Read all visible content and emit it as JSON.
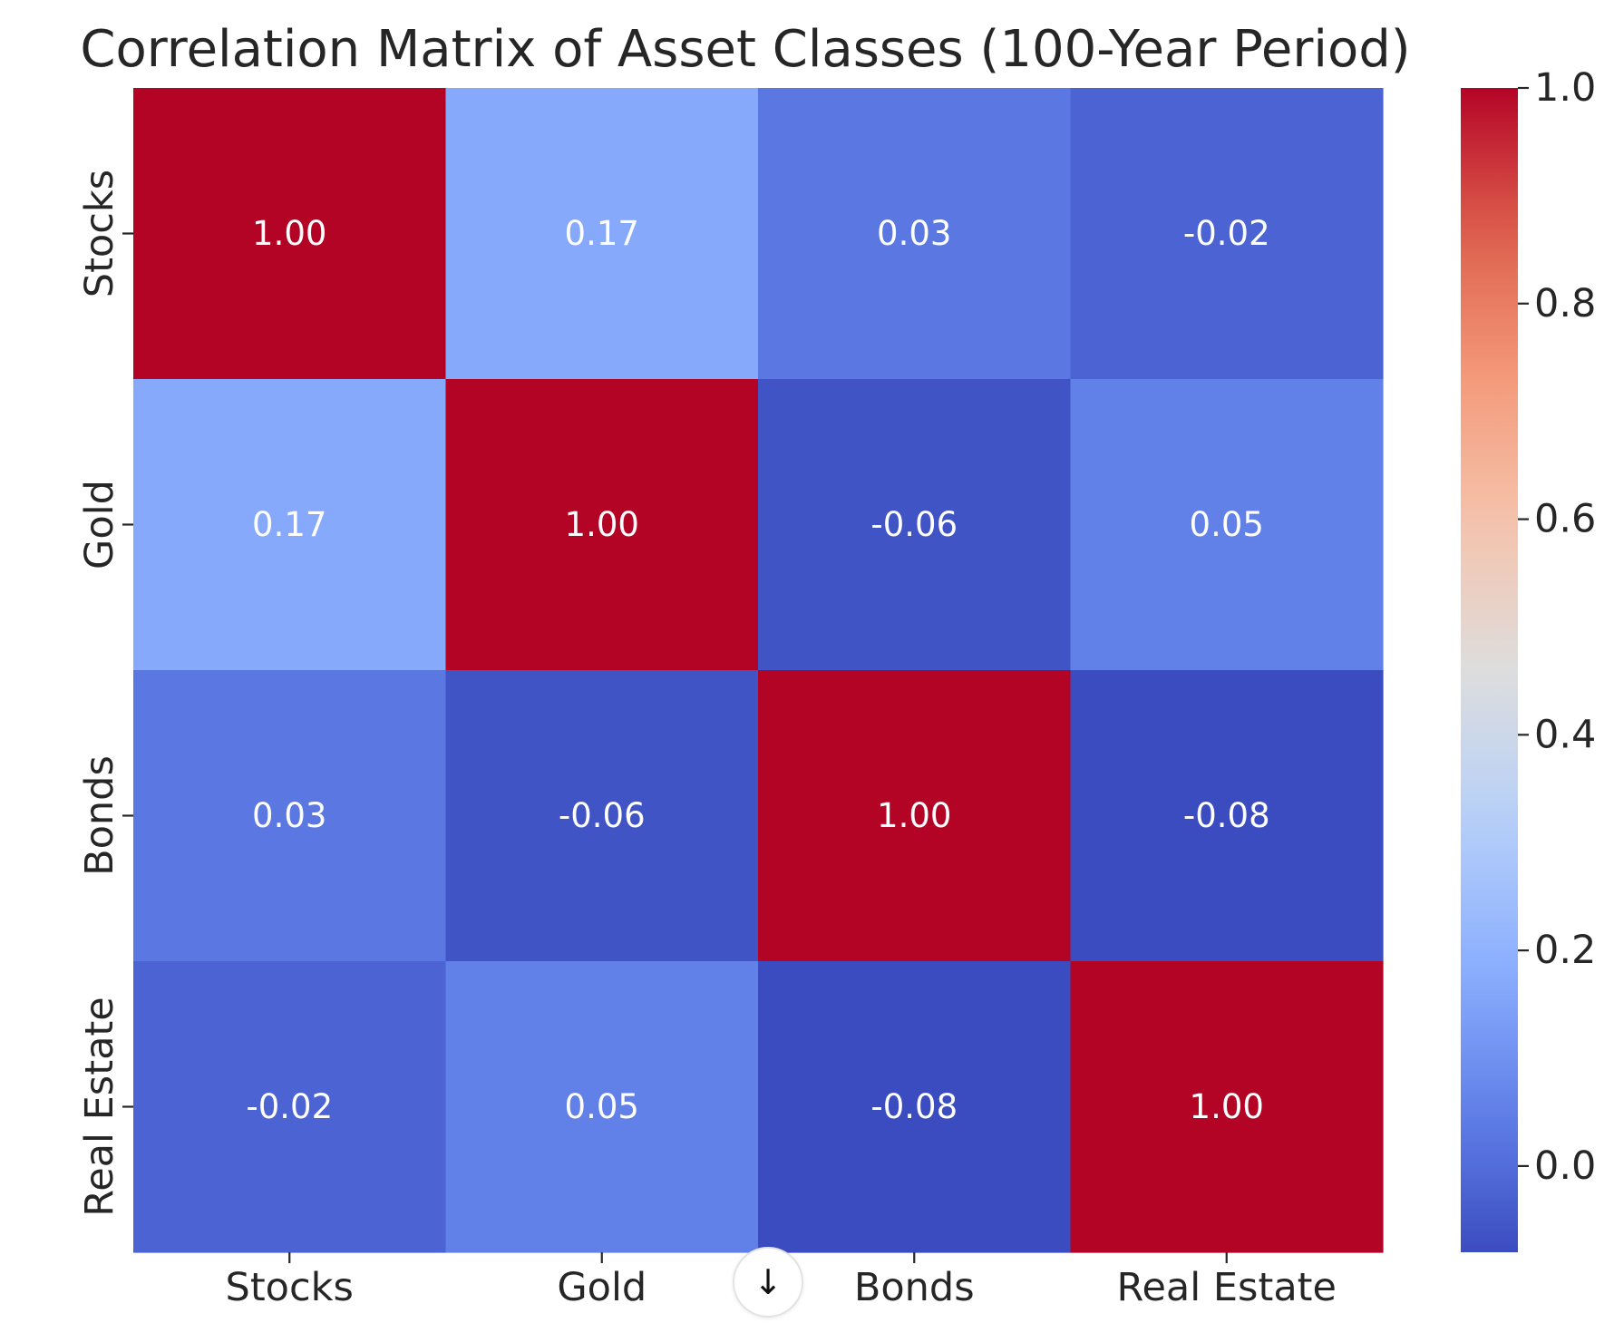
{
  "chart_data": {
    "type": "heatmap",
    "title": "Correlation Matrix of Asset Classes (100-Year Period)",
    "xlabel": "",
    "ylabel": "",
    "x_categories": [
      "Stocks",
      "Gold",
      "Bonds",
      "Real Estate"
    ],
    "y_categories": [
      "Stocks",
      "Gold",
      "Bonds",
      "Real Estate"
    ],
    "values": [
      [
        1.0,
        0.17,
        0.03,
        -0.02
      ],
      [
        0.17,
        1.0,
        -0.06,
        0.05
      ],
      [
        0.03,
        -0.06,
        1.0,
        -0.08
      ],
      [
        -0.02,
        0.05,
        -0.08,
        1.0
      ]
    ],
    "cell_labels": [
      [
        "1.00",
        "0.17",
        "0.03",
        "-0.02"
      ],
      [
        "0.17",
        "1.00",
        "-0.06",
        "0.05"
      ],
      [
        "0.03",
        "-0.06",
        "1.00",
        "-0.08"
      ],
      [
        "-0.02",
        "0.05",
        "-0.08",
        "1.00"
      ]
    ],
    "colormap": "coolwarm",
    "colorbar": {
      "range": [
        -0.08,
        1.0
      ],
      "ticks": [
        0.0,
        0.2,
        0.4,
        0.6,
        0.8,
        1.0
      ],
      "tick_labels": [
        "0.0",
        "0.2",
        "0.4",
        "0.6",
        "0.8",
        "1.0"
      ],
      "placement": "right"
    },
    "grid": false,
    "legend": "none"
  },
  "scroll_button": {
    "icon": "arrow-down-icon",
    "glyph": "↓"
  }
}
